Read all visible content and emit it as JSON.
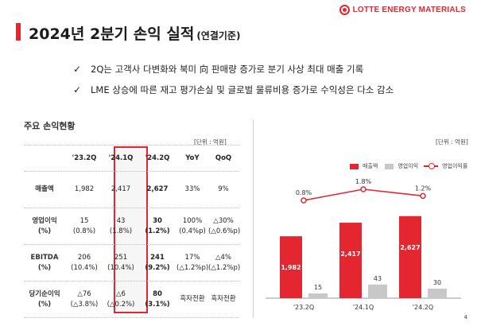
{
  "header": {
    "logo_text": "LOTTE ENERGY MATERIALS",
    "title": "2024년 2분기 손익 실적",
    "title_sub": "(연결기준)",
    "brand_color": "#e3262f"
  },
  "bullets": [
    "2Q는 고객사 다변화와 북미 向 판매량 증가로 분기 사상 최대 매출 기록",
    "LME 상승에 따른 재고 평가손실 및 글로벌 물류비용 증가로 수익성은 다소 감소"
  ],
  "table": {
    "section_label": "주요 손익현황",
    "unit": "[단위 : 억원]",
    "headers": [
      "",
      "'23.2Q",
      "'24.1Q",
      "'24.2Q",
      "YoY",
      "QoQ"
    ],
    "rows": [
      {
        "label": "매출액",
        "label2": "",
        "cells": [
          [
            "1,982",
            ""
          ],
          [
            "2,417",
            ""
          ],
          [
            "2,627",
            ""
          ],
          [
            "33%",
            ""
          ],
          [
            "9%",
            ""
          ]
        ]
      },
      {
        "label": "영업이익",
        "label2": "(%)",
        "cells": [
          [
            "15",
            "(0.8%)"
          ],
          [
            "43",
            "(1.8%)"
          ],
          [
            "30",
            "(1.2%)"
          ],
          [
            "100%",
            "(0.4%p)"
          ],
          [
            "△30%",
            "(△0.6%p)"
          ]
        ]
      },
      {
        "label": "EBITDA",
        "label2": "(%)",
        "cells": [
          [
            "206",
            "(10.4%)"
          ],
          [
            "251",
            "(10.4%)"
          ],
          [
            "241",
            "(9.2%)"
          ],
          [
            "17%",
            "(△1.2%p)"
          ],
          [
            "△4%",
            "(△1.2%p)"
          ]
        ]
      },
      {
        "label": "당기순이익",
        "label2": "(%)",
        "cells": [
          [
            "△76",
            "(△3.8%)"
          ],
          [
            "△6",
            "(△0.2%)"
          ],
          [
            "80",
            "(3.1%)"
          ],
          [
            "흑자전환",
            ""
          ],
          [
            "흑자전환",
            ""
          ]
        ]
      }
    ]
  },
  "chart_unit": "[단위 : 억원]",
  "legend": {
    "sales": "매출액",
    "op": "영업이익",
    "margin": "영업이익률"
  },
  "chart_data": {
    "type": "bar",
    "categories": [
      "'23.2Q",
      "'24.1Q",
      "'24.2Q"
    ],
    "series": [
      {
        "name": "매출액",
        "values": [
          1982,
          2417,
          2627
        ],
        "labels": [
          "1,982",
          "2,417",
          "2,627"
        ],
        "color": "#e3262f"
      },
      {
        "name": "영업이익",
        "values": [
          15,
          43,
          30
        ],
        "labels": [
          "15",
          "43",
          "30"
        ],
        "color": "#c8c8c8"
      },
      {
        "name": "영업이익률",
        "values": [
          0.8,
          1.8,
          1.2
        ],
        "labels": [
          "0.8%",
          "1.8%",
          "1.2%"
        ],
        "color": "#e3262f",
        "kind": "line"
      }
    ]
  },
  "page_number": "4"
}
